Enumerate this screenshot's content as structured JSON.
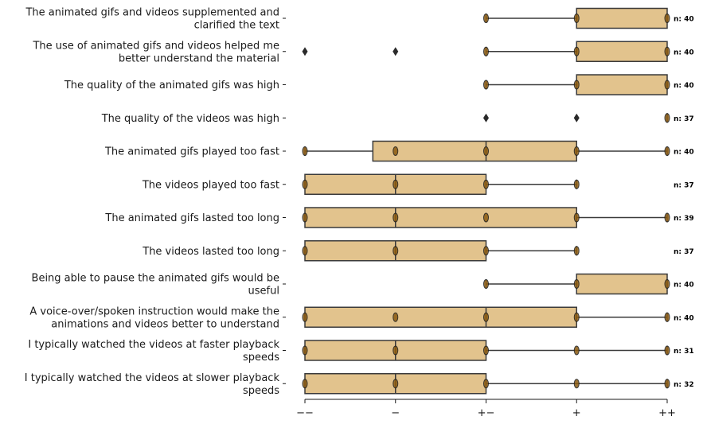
{
  "chart_data": {
    "type": "boxplot",
    "orientation": "horizontal",
    "x_ticks": [
      "−−",
      "−",
      "+−",
      "+",
      "++"
    ],
    "box_color": "#e2c38d",
    "edge_color": "#3a3a3a",
    "items": [
      {
        "label": [
          "The animated gifs and videos supplemented and",
          "clarified the text"
        ],
        "n_label": "n: 40",
        "whisker_lo": 3,
        "q1": 4,
        "median": 4,
        "q3": 5,
        "whisker_hi": 5,
        "outliers": [],
        "points": [
          3,
          4,
          5
        ]
      },
      {
        "label": [
          "The use of animated gifs and videos helped me",
          "better understand the material"
        ],
        "n_label": "n: 40",
        "whisker_lo": 3,
        "q1": 4,
        "median": 4,
        "q3": 5,
        "whisker_hi": 5,
        "outliers": [
          1,
          2
        ],
        "points": [
          3,
          4,
          5
        ]
      },
      {
        "label": [
          "The quality of the animated gifs was high"
        ],
        "n_label": "n: 40",
        "whisker_lo": 3,
        "q1": 4,
        "median": 4,
        "q3": 5,
        "whisker_hi": 5,
        "outliers": [],
        "points": [
          3,
          4,
          5
        ]
      },
      {
        "label": [
          "The quality of the videos was high"
        ],
        "n_label": "n: 37",
        "whisker_lo": 5,
        "q1": 5,
        "median": 5,
        "q3": 5,
        "whisker_hi": 5,
        "outliers": [
          3,
          4
        ],
        "points": [
          5
        ]
      },
      {
        "label": [
          "The animated gifs played too fast"
        ],
        "n_label": "n: 40",
        "whisker_lo": 1,
        "q1": 1.75,
        "median": 3,
        "q3": 4,
        "whisker_hi": 5,
        "outliers": [],
        "points": [
          1,
          2,
          3,
          4,
          5
        ]
      },
      {
        "label": [
          "The videos played too fast"
        ],
        "n_label": "n: 37",
        "whisker_lo": 1,
        "q1": 1,
        "median": 2,
        "q3": 3,
        "whisker_hi": 4,
        "outliers": [],
        "points": [
          1,
          2,
          3,
          4
        ]
      },
      {
        "label": [
          "The animated gifs lasted too long"
        ],
        "n_label": "n: 39",
        "whisker_lo": 1,
        "q1": 1,
        "median": 2,
        "q3": 4,
        "whisker_hi": 5,
        "outliers": [],
        "points": [
          1,
          2,
          3,
          4,
          5
        ]
      },
      {
        "label": [
          "The videos lasted too long"
        ],
        "n_label": "n: 37",
        "whisker_lo": 1,
        "q1": 1,
        "median": 2,
        "q3": 3,
        "whisker_hi": 4,
        "outliers": [],
        "points": [
          1,
          2,
          3,
          4
        ]
      },
      {
        "label": [
          "Being able to pause the animated gifs would be",
          "useful"
        ],
        "n_label": "n: 40",
        "whisker_lo": 3,
        "q1": 4,
        "median": 4,
        "q3": 5,
        "whisker_hi": 5,
        "outliers": [],
        "points": [
          3,
          4,
          5
        ]
      },
      {
        "label": [
          "A voice-over/spoken instruction would make the",
          "animations and videos better to understand"
        ],
        "n_label": "n: 40",
        "whisker_lo": 1,
        "q1": 1,
        "median": 3,
        "q3": 4,
        "whisker_hi": 5,
        "outliers": [],
        "points": [
          1,
          2,
          3,
          4,
          5
        ]
      },
      {
        "label": [
          "I typically watched the videos at faster playback",
          "speeds"
        ],
        "n_label": "n: 31",
        "whisker_lo": 1,
        "q1": 1,
        "median": 2,
        "q3": 3,
        "whisker_hi": 5,
        "outliers": [],
        "points": [
          1,
          2,
          3,
          4,
          5
        ]
      },
      {
        "label": [
          "I typically watched the videos at slower playback",
          "speeds"
        ],
        "n_label": "n: 32",
        "whisker_lo": 1,
        "q1": 1,
        "median": 2,
        "q3": 3,
        "whisker_hi": 5,
        "outliers": [],
        "points": [
          1,
          2,
          3,
          4,
          5
        ]
      }
    ]
  }
}
